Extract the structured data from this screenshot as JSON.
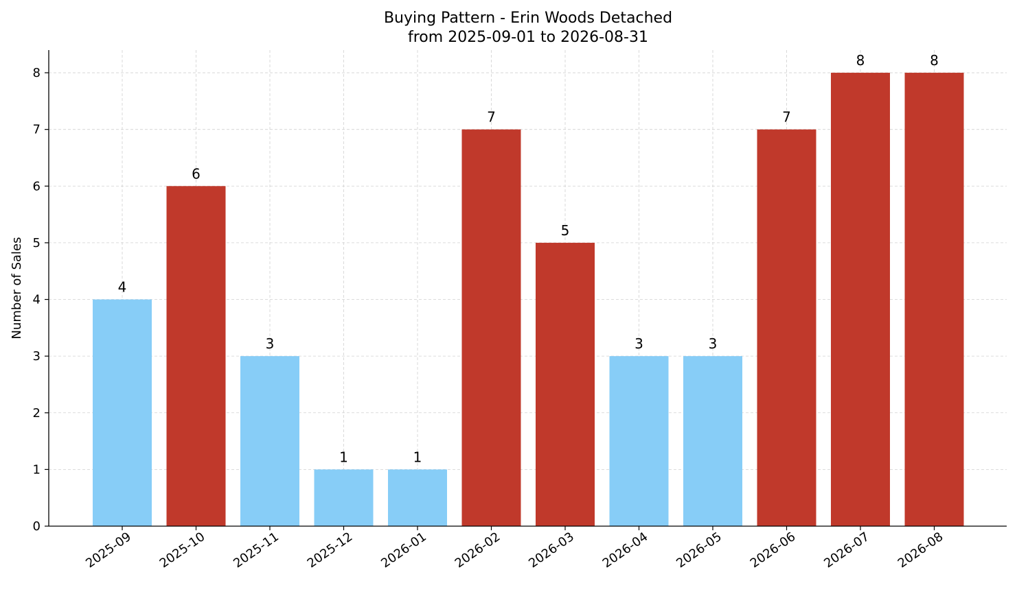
{
  "chart_data": {
    "type": "bar",
    "title": "Buying Pattern - Erin Woods Detached",
    "subtitle": "from 2025-09-01 to 2026-08-31",
    "xlabel": "",
    "ylabel": "Number of Sales",
    "categories": [
      "2025-09",
      "2025-10",
      "2025-11",
      "2025-12",
      "2026-01",
      "2026-02",
      "2026-03",
      "2026-04",
      "2026-05",
      "2026-06",
      "2026-07",
      "2026-08"
    ],
    "values": [
      4,
      6,
      3,
      1,
      1,
      7,
      5,
      3,
      3,
      7,
      8,
      8
    ],
    "bar_colors": [
      "#87cdf7",
      "#c0392b",
      "#87cdf7",
      "#87cdf7",
      "#87cdf7",
      "#c0392b",
      "#c0392b",
      "#87cdf7",
      "#87cdf7",
      "#c0392b",
      "#c0392b",
      "#c0392b"
    ],
    "y_ticks": [
      0,
      1,
      2,
      3,
      4,
      5,
      6,
      7,
      8
    ],
    "ylim": [
      0,
      8.4
    ],
    "grid": true,
    "legend": "none"
  }
}
